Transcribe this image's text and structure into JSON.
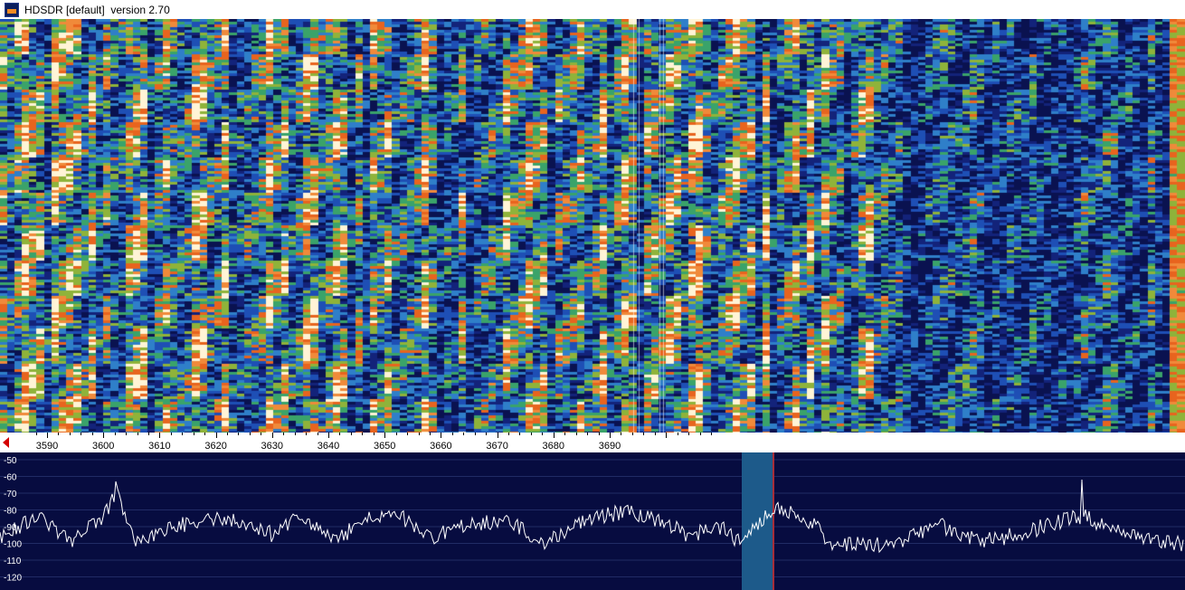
{
  "window": {
    "title": "HDSDR [default]  version 2.70"
  },
  "frequency_scale": {
    "labels": [
      "3590",
      "3600",
      "3610",
      "3620",
      "3630",
      "3640",
      "3650",
      "3660",
      "3670",
      "3680",
      "3690"
    ]
  },
  "spectrum": {
    "db_labels": [
      "-50",
      "-60",
      "-70",
      "-80",
      "-90",
      "-100",
      "-110",
      "-120"
    ]
  },
  "colors": {
    "waterfall_bg": "#0a1250",
    "waterfall_mid": "#1e4fb5",
    "waterfall_hot": "#e8641e",
    "waterfall_peak": "#fff4d6",
    "spectrum_bg": "#070c40",
    "spectrum_trace": "#ffffff",
    "filter_band": "#1d5a8a",
    "filter_edge": "#d42020"
  }
}
